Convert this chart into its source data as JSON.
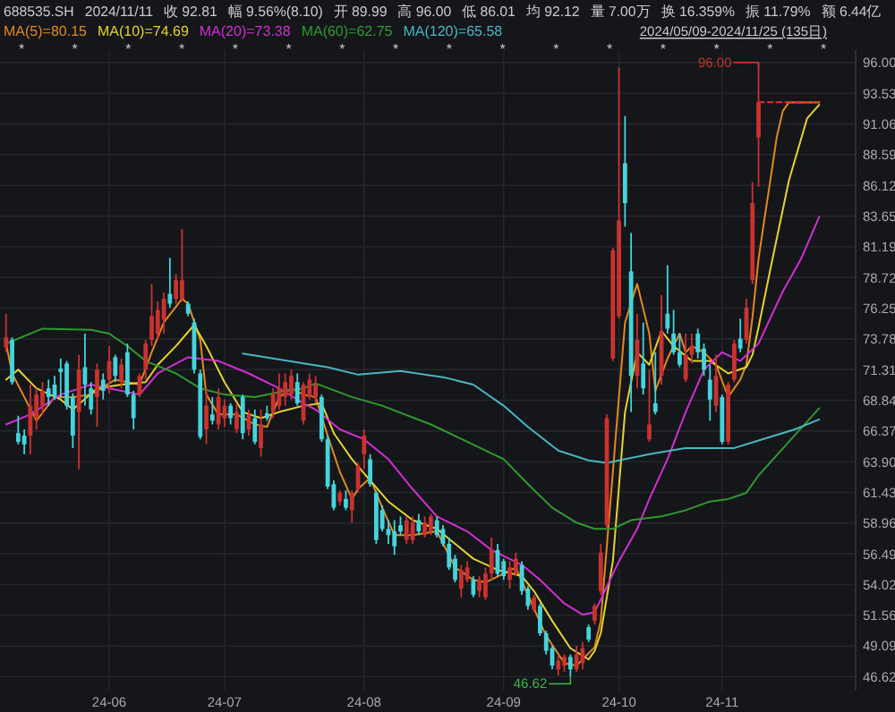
{
  "chart_data": {
    "type": "candlestick",
    "categories": [
      null,
      null,
      null,
      null,
      null,
      null,
      null,
      null,
      null,
      null,
      null,
      null,
      null,
      null,
      null,
      null,
      null,
      "24-06",
      null,
      null,
      null,
      null,
      null,
      null,
      null,
      null,
      null,
      null,
      null,
      null,
      null,
      null,
      null,
      null,
      null,
      null,
      "24-07",
      null,
      null,
      null,
      null,
      null,
      null,
      null,
      null,
      null,
      null,
      null,
      null,
      null,
      null,
      null,
      null,
      null,
      null,
      null,
      null,
      null,
      null,
      "24-08",
      null,
      null,
      null,
      null,
      null,
      null,
      null,
      null,
      null,
      null,
      null,
      null,
      null,
      null,
      null,
      null,
      null,
      null,
      null,
      null,
      null,
      null,
      "24-09",
      null,
      null,
      null,
      null,
      null,
      null,
      null,
      null,
      null,
      null,
      null,
      null,
      null,
      null,
      null,
      null,
      null,
      null,
      "24-10",
      null,
      null,
      null,
      null,
      null,
      null,
      null,
      null,
      null,
      null,
      null,
      null,
      null,
      null,
      null,
      null,
      "24-11",
      null,
      null,
      null,
      null,
      null,
      null,
      null,
      null,
      null,
      null,
      null,
      null,
      null,
      null,
      null,
      null
    ],
    "ohlc": [
      [
        73.1,
        75.8,
        72.7,
        73.9
      ],
      [
        73.7,
        73.9,
        70.1,
        70.3
      ],
      [
        66.2,
        67.6,
        65.3,
        65.5
      ],
      [
        66.0,
        66.5,
        64.5,
        65.3
      ],
      [
        66.0,
        70.1,
        64.5,
        68.4
      ],
      [
        67.4,
        69.8,
        66.5,
        69.3
      ],
      [
        68.4,
        70.3,
        67.7,
        69.6
      ],
      [
        69.8,
        70.5,
        68.4,
        69.1
      ],
      [
        70.1,
        70.8,
        68.9,
        69.1
      ],
      [
        71.4,
        72.2,
        69.1,
        71.1
      ],
      [
        71.8,
        72.0,
        68.1,
        68.4
      ],
      [
        69.1,
        69.4,
        65.0,
        66.0
      ],
      [
        67.9,
        72.5,
        63.3,
        71.3
      ],
      [
        71.5,
        74.2,
        68.4,
        70.1
      ],
      [
        69.8,
        70.3,
        67.7,
        68.1
      ],
      [
        69.1,
        71.8,
        66.7,
        71.3
      ],
      [
        70.5,
        71.0,
        68.9,
        69.6
      ],
      [
        70.5,
        73.2,
        69.4,
        72.0
      ],
      [
        72.3,
        72.5,
        70.3,
        70.8
      ],
      [
        70.3,
        72.2,
        69.8,
        71.7
      ],
      [
        72.7,
        73.4,
        69.1,
        69.3
      ],
      [
        69.3,
        69.6,
        66.5,
        67.4
      ],
      [
        69.3,
        71.0,
        69.1,
        70.8
      ],
      [
        71.3,
        73.7,
        70.5,
        73.4
      ],
      [
        73.7,
        78.2,
        73.2,
        75.6
      ],
      [
        74.2,
        76.8,
        73.7,
        76.1
      ],
      [
        75.3,
        77.5,
        74.2,
        77.0
      ],
      [
        77.4,
        80.3,
        76.3,
        76.6
      ],
      [
        77.0,
        79.0,
        76.6,
        78.5
      ],
      [
        77.0,
        82.6,
        76.8,
        78.5
      ],
      [
        76.6,
        76.8,
        75.6,
        75.8
      ],
      [
        75.1,
        75.4,
        71.0,
        71.3
      ],
      [
        71.0,
        71.3,
        65.7,
        65.9
      ],
      [
        66.5,
        69.8,
        65.3,
        68.4
      ],
      [
        67.7,
        69.1,
        66.9,
        67.2
      ],
      [
        66.9,
        69.8,
        66.5,
        69.1
      ],
      [
        67.4,
        68.9,
        66.7,
        68.4
      ],
      [
        68.4,
        68.6,
        66.9,
        67.4
      ],
      [
        66.5,
        68.6,
        66.2,
        67.9
      ],
      [
        69.1,
        69.3,
        65.7,
        66.2
      ],
      [
        66.5,
        68.1,
        66.0,
        67.7
      ],
      [
        67.4,
        68.1,
        65.3,
        65.5
      ],
      [
        65.0,
        68.1,
        64.3,
        66.9
      ],
      [
        67.8,
        68.4,
        67.2,
        67.4
      ],
      [
        67.9,
        69.8,
        67.4,
        69.3
      ],
      [
        68.4,
        71.0,
        68.1,
        69.8
      ],
      [
        69.1,
        71.0,
        68.4,
        70.3
      ],
      [
        69.3,
        71.3,
        68.9,
        70.8
      ],
      [
        70.3,
        71.0,
        68.4,
        68.6
      ],
      [
        67.2,
        70.3,
        66.9,
        70.1
      ],
      [
        69.1,
        71.0,
        68.9,
        70.5
      ],
      [
        69.1,
        70.8,
        68.6,
        70.1
      ],
      [
        69.1,
        69.3,
        65.5,
        65.7
      ],
      [
        65.7,
        66.0,
        61.7,
        61.9
      ],
      [
        62.1,
        62.4,
        60.0,
        60.2
      ],
      [
        60.7,
        61.6,
        60.4,
        61.4
      ],
      [
        60.9,
        61.6,
        60.0,
        60.2
      ],
      [
        60.0,
        61.6,
        59.0,
        61.4
      ],
      [
        61.7,
        63.8,
        61.4,
        63.6
      ],
      [
        64.5,
        66.5,
        63.3,
        66.0
      ],
      [
        64.1,
        64.5,
        61.9,
        62.1
      ],
      [
        61.4,
        61.6,
        57.3,
        57.6
      ],
      [
        60.0,
        60.4,
        58.3,
        58.5
      ],
      [
        58.5,
        59.2,
        57.3,
        58.0
      ],
      [
        58.3,
        59.2,
        56.4,
        57.1
      ],
      [
        58.8,
        59.5,
        58.0,
        58.3
      ],
      [
        57.6,
        59.5,
        57.3,
        59.2
      ],
      [
        57.6,
        59.5,
        57.3,
        59.0
      ],
      [
        59.2,
        59.7,
        58.0,
        58.3
      ],
      [
        58.0,
        59.5,
        57.8,
        59.0
      ],
      [
        58.3,
        59.7,
        58.0,
        59.5
      ],
      [
        59.2,
        59.5,
        57.8,
        58.0
      ],
      [
        58.5,
        58.8,
        57.1,
        57.3
      ],
      [
        57.3,
        57.8,
        55.2,
        55.4
      ],
      [
        56.1,
        56.4,
        54.2,
        54.4
      ],
      [
        53.7,
        55.6,
        53.0,
        55.2
      ],
      [
        54.4,
        55.9,
        54.2,
        55.4
      ],
      [
        54.4,
        54.7,
        53.0,
        53.2
      ],
      [
        53.5,
        54.7,
        53.0,
        54.4
      ],
      [
        53.0,
        55.4,
        52.8,
        54.9
      ],
      [
        54.9,
        57.8,
        54.4,
        56.8
      ],
      [
        56.8,
        57.3,
        54.7,
        54.9
      ],
      [
        55.9,
        56.1,
        54.4,
        54.7
      ],
      [
        54.4,
        55.9,
        53.7,
        55.4
      ],
      [
        54.9,
        56.6,
        54.7,
        56.1
      ],
      [
        55.6,
        55.9,
        53.2,
        53.5
      ],
      [
        53.7,
        53.9,
        52.0,
        52.3
      ],
      [
        52.0,
        53.2,
        51.8,
        53.0
      ],
      [
        52.3,
        52.5,
        49.9,
        50.1
      ],
      [
        50.1,
        50.3,
        48.4,
        48.7
      ],
      [
        48.9,
        49.1,
        47.2,
        47.5
      ],
      [
        47.2,
        48.4,
        46.7,
        47.9
      ],
      [
        47.5,
        48.4,
        47.0,
        48.2
      ],
      [
        48.2,
        48.4,
        46.62,
        47.2
      ],
      [
        47.2,
        49.1,
        47.0,
        48.4
      ],
      [
        47.7,
        49.4,
        47.2,
        48.9
      ],
      [
        50.6,
        50.8,
        49.4,
        49.6
      ],
      [
        51.1,
        52.5,
        50.8,
        52.3
      ],
      [
        53.5,
        57.3,
        53.2,
        56.6
      ],
      [
        58.8,
        67.7,
        58.5,
        67.4
      ],
      [
        72.2,
        81.1,
        72.0,
        80.9
      ],
      [
        75.6,
        95.6,
        75.4,
        83.3
      ],
      [
        87.9,
        91.7,
        82.8,
        84.7
      ],
      [
        79.2,
        82.3,
        67.9,
        70.8
      ],
      [
        70.8,
        75.8,
        69.8,
        73.7
      ],
      [
        71.8,
        75.1,
        69.3,
        69.8
      ],
      [
        65.7,
        71.3,
        65.5,
        66.9
      ],
      [
        68.6,
        72.7,
        67.7,
        67.9
      ],
      [
        70.8,
        77.3,
        70.1,
        74.4
      ],
      [
        75.8,
        79.7,
        74.2,
        74.6
      ],
      [
        74.2,
        76.1,
        72.5,
        72.7
      ],
      [
        72.7,
        74.2,
        71.5,
        71.7
      ],
      [
        70.5,
        74.2,
        70.3,
        72.5
      ],
      [
        72.5,
        74.2,
        71.8,
        73.2
      ],
      [
        74.2,
        74.6,
        72.2,
        72.7
      ],
      [
        73.0,
        73.4,
        70.8,
        71.3
      ],
      [
        70.5,
        71.7,
        67.2,
        68.9
      ],
      [
        68.4,
        72.5,
        67.9,
        70.8
      ],
      [
        69.1,
        69.3,
        65.3,
        65.5
      ],
      [
        65.5,
        70.3,
        65.3,
        70.1
      ],
      [
        70.5,
        73.7,
        70.3,
        73.4
      ],
      [
        73.8,
        75.4,
        72.7,
        73.0
      ],
      [
        73.7,
        77.0,
        73.4,
        76.3
      ],
      [
        78.5,
        86.4,
        78.2,
        84.7
      ],
      [
        89.99,
        96.0,
        86.01,
        92.81
      ],
      null,
      null,
      null,
      null,
      null,
      null,
      null,
      null,
      null,
      null
    ],
    "colors": [
      "#c8332f",
      "#45d4dc",
      "#45d4dc",
      "#45d4dc",
      "#c8332f",
      "#c8332f",
      "#c8332f",
      "#45d4dc",
      "#45d4dc",
      "#45d4dc",
      "#45d4dc",
      "#45d4dc",
      "#c8332f",
      "#45d4dc",
      "#45d4dc",
      "#c8332f",
      "#45d4dc",
      "#c8332f",
      "#45d4dc",
      "#c8332f",
      "#45d4dc",
      "#45d4dc",
      "#c8332f",
      "#c8332f",
      "#c8332f",
      "#c8332f",
      "#c8332f",
      "#45d4dc",
      "#c8332f",
      "#c8332f",
      "#45d4dc",
      "#45d4dc",
      "#45d4dc",
      "#c8332f",
      "#45d4dc",
      "#c8332f",
      "#c8332f",
      "#45d4dc",
      "#c8332f",
      "#45d4dc",
      "#c8332f",
      "#45d4dc",
      "#c8332f",
      "#45d4dc",
      "#c8332f",
      "#c8332f",
      "#c8332f",
      "#c8332f",
      "#45d4dc",
      "#c8332f",
      "#c8332f",
      "#c8332f",
      "#45d4dc",
      "#45d4dc",
      "#45d4dc",
      "#c8332f",
      "#45d4dc",
      "#c8332f",
      "#c8332f",
      "#c8332f",
      "#45d4dc",
      "#45d4dc",
      "#45d4dc",
      "#45d4dc",
      "#45d4dc",
      "#45d4dc",
      "#c8332f",
      "#c8332f",
      "#45d4dc",
      "#c8332f",
      "#c8332f",
      "#45d4dc",
      "#45d4dc",
      "#45d4dc",
      "#45d4dc",
      "#c8332f",
      "#c8332f",
      "#45d4dc",
      "#c8332f",
      "#c8332f",
      "#c8332f",
      "#45d4dc",
      "#45d4dc",
      "#c8332f",
      "#c8332f",
      "#45d4dc",
      "#45d4dc",
      "#c8332f",
      "#45d4dc",
      "#45d4dc",
      "#45d4dc",
      "#c8332f",
      "#c8332f",
      "#45d4dc",
      "#c8332f",
      "#c8332f",
      "#45d4dc",
      "#c8332f",
      "#c8332f",
      "#c8332f",
      "#c8332f",
      "#c8332f",
      "#45d4dc",
      "#45d4dc",
      "#c8332f",
      "#45d4dc",
      "#c8332f",
      "#45d4dc",
      "#c8332f",
      "#45d4dc",
      "#45d4dc",
      "#45d4dc",
      "#c8332f",
      "#c8332f",
      "#45d4dc",
      "#45d4dc",
      "#45d4dc",
      "#c8332f",
      "#45d4dc",
      "#c8332f",
      "#c8332f",
      "#45d4dc",
      "#c8332f",
      "#c8332f",
      "#c8332f",
      null,
      null,
      null,
      null,
      null,
      null,
      null,
      null,
      null,
      null
    ],
    "series": [
      {
        "type": "line",
        "name": "MA(5)=80.15",
        "color": "#e28a1f",
        "values": [
          73.4,
          71.0,
          null,
          69.1,
          null,
          67.2,
          null,
          null,
          69.1,
          null,
          null,
          69.1,
          null,
          null,
          69.3,
          null,
          null,
          null,
          70.5,
          null,
          null,
          null,
          70.1,
          null,
          72.7,
          null,
          75.1,
          null,
          null,
          77.0,
          76.6,
          null,
          73.7,
          69.3,
          null,
          67.7,
          null,
          null,
          67.7,
          null,
          null,
          66.9,
          null,
          66.7,
          null,
          69.1,
          null,
          69.8,
          null,
          69.3,
          null,
          69.1,
          null,
          66.0,
          null,
          63.1,
          null,
          60.9,
          61.7,
          null,
          62.6,
          null,
          60.2,
          null,
          58.0,
          null,
          null,
          58.0,
          null,
          null,
          null,
          58.3,
          null,
          null,
          55.4,
          null,
          null,
          54.4,
          null,
          54.2,
          null,
          null,
          54.9,
          null,
          55.4,
          null,
          53.2,
          null,
          null,
          49.9,
          null,
          null,
          47.7,
          null,
          47.5,
          null,
          null,
          49.0,
          51.1,
          null,
          63.1,
          null,
          75.1,
          null,
          78.2,
          null,
          74.2,
          69.6,
          null,
          72.2,
          null,
          74.2,
          72.7,
          73.2,
          null,
          72.7,
          null,
          71.7,
          null,
          69.1,
          null,
          70.5,
          71.7,
          75.5,
          80.2,
          83.5,
          86.7,
          90.0,
          92.1,
          92.8,
          null,
          null,
          null,
          null,
          92.8
        ]
      },
      {
        "type": "line",
        "name": "MA(10)=74.69",
        "color": "#e6d332",
        "values": [
          70.5,
          null,
          71.3,
          null,
          null,
          69.8,
          null,
          null,
          null,
          68.9,
          null,
          68.1,
          null,
          null,
          null,
          69.8,
          null,
          null,
          null,
          70.1,
          null,
          null,
          null,
          70.3,
          null,
          71.7,
          null,
          null,
          73.2,
          null,
          null,
          74.9,
          null,
          73.2,
          null,
          null,
          70.3,
          null,
          null,
          67.9,
          null,
          null,
          67.4,
          null,
          null,
          67.9,
          null,
          null,
          null,
          68.4,
          null,
          null,
          68.6,
          null,
          66.2,
          null,
          null,
          64.1,
          null,
          null,
          62.4,
          null,
          null,
          60.7,
          null,
          null,
          null,
          59.2,
          null,
          null,
          null,
          58.5,
          null,
          null,
          57.3,
          null,
          null,
          56.1,
          null,
          null,
          null,
          55.2,
          null,
          null,
          null,
          54.7,
          null,
          53.5,
          null,
          null,
          51.1,
          null,
          null,
          48.9,
          null,
          null,
          48.0,
          48.7,
          50.1,
          null,
          55.9,
          null,
          67.9,
          null,
          72.7,
          null,
          71.7,
          null,
          74.4,
          null,
          73.2,
          null,
          null,
          72.0,
          null,
          null,
          72.0,
          null,
          null,
          71.0,
          null,
          null,
          71.5,
          72.5,
          74.7,
          null,
          79.5,
          null,
          null,
          86.5,
          null,
          null,
          91.5,
          null,
          92.6
        ]
      },
      {
        "type": "line",
        "name": "MA(20)=73.38",
        "color": "#d22fd2",
        "values": [
          66.9,
          null,
          null,
          null,
          67.7,
          null,
          null,
          null,
          null,
          69.3,
          null,
          null,
          null,
          null,
          70.1,
          null,
          null,
          null,
          null,
          69.6,
          null,
          null,
          69.3,
          null,
          null,
          71.0,
          null,
          null,
          null,
          null,
          72.3,
          null,
          null,
          null,
          null,
          72.0,
          null,
          null,
          null,
          null,
          71.0,
          null,
          null,
          null,
          null,
          69.8,
          null,
          null,
          null,
          68.6,
          null,
          68.1,
          null,
          null,
          null,
          66.5,
          null,
          null,
          null,
          65.7,
          null,
          null,
          null,
          64.1,
          null,
          null,
          null,
          61.7,
          null,
          null,
          null,
          59.5,
          null,
          null,
          null,
          null,
          58.3,
          null,
          null,
          null,
          56.8,
          null,
          null,
          null,
          null,
          55.6,
          null,
          null,
          54.4,
          null,
          null,
          null,
          52.5,
          null,
          null,
          51.6,
          null,
          51.8,
          null,
          null,
          null,
          55.9,
          null,
          null,
          58.5,
          null,
          60.9,
          null,
          null,
          64.1,
          null,
          null,
          67.9,
          null,
          null,
          71.3,
          null,
          null,
          72.7,
          null,
          null,
          72.0,
          null,
          null,
          73.4,
          null,
          null,
          null,
          77.6,
          null,
          null,
          80.2,
          null,
          null,
          83.6
        ]
      },
      {
        "type": "line",
        "name": "MA(60)=62.75",
        "color": "#2f9a2f",
        "values": [
          73.4,
          null,
          null,
          null,
          null,
          null,
          74.6,
          null,
          null,
          null,
          null,
          null,
          null,
          null,
          74.5,
          null,
          null,
          74.2,
          null,
          null,
          73.2,
          null,
          null,
          72.0,
          null,
          null,
          null,
          null,
          71.0,
          null,
          null,
          null,
          69.8,
          null,
          null,
          null,
          69.3,
          null,
          null,
          null,
          null,
          69.1,
          null,
          null,
          null,
          null,
          69.6,
          null,
          null,
          69.8,
          null,
          70.2,
          null,
          null,
          null,
          null,
          null,
          69.1,
          null,
          null,
          null,
          null,
          68.4,
          null,
          null,
          null,
          null,
          null,
          null,
          null,
          66.9,
          null,
          null,
          null,
          null,
          null,
          65.5,
          null,
          null,
          null,
          null,
          null,
          64.1,
          null,
          null,
          null,
          62.1,
          null,
          null,
          null,
          60.2,
          null,
          null,
          null,
          59.0,
          null,
          null,
          58.5,
          null,
          null,
          58.5,
          null,
          null,
          59.2,
          null,
          null,
          null,
          null,
          59.5,
          null,
          null,
          null,
          60.0,
          null,
          null,
          null,
          60.7,
          null,
          null,
          60.9,
          null,
          null,
          61.4,
          null,
          62.8,
          null,
          null,
          null,
          null,
          65.5,
          null,
          null,
          null,
          null,
          68.2
        ]
      },
      {
        "type": "line",
        "name": "MA(120)=65.58",
        "color": "#4ab6c0",
        "values": [
          null,
          null,
          null,
          null,
          null,
          null,
          null,
          null,
          null,
          null,
          null,
          null,
          null,
          null,
          null,
          null,
          null,
          null,
          null,
          null,
          null,
          null,
          null,
          null,
          null,
          null,
          null,
          null,
          null,
          null,
          null,
          null,
          null,
          null,
          null,
          null,
          null,
          null,
          null,
          72.6,
          null,
          null,
          null,
          null,
          null,
          null,
          null,
          null,
          null,
          71.8,
          null,
          null,
          null,
          71.5,
          null,
          null,
          null,
          null,
          70.9,
          null,
          null,
          null,
          null,
          null,
          null,
          71.2,
          null,
          null,
          null,
          null,
          null,
          null,
          70.7,
          null,
          null,
          null,
          null,
          70.1,
          null,
          null,
          null,
          null,
          68.4,
          null,
          null,
          null,
          66.7,
          null,
          null,
          null,
          null,
          64.8,
          null,
          null,
          null,
          null,
          64.0,
          null,
          null,
          63.8,
          null,
          null,
          null,
          null,
          null,
          null,
          64.5,
          null,
          null,
          null,
          null,
          null,
          65.0,
          null,
          null,
          null,
          null,
          null,
          null,
          null,
          65.0,
          null,
          null,
          null,
          65.6,
          null,
          null,
          null,
          null,
          null,
          66.5,
          null,
          null,
          null,
          67.3
        ]
      },
      {
        "type": "line",
        "color": "#e0302b",
        "line_style": "dashed",
        "values": [
          null,
          null,
          null,
          null,
          null,
          null,
          null,
          null,
          null,
          null,
          null,
          null,
          null,
          null,
          null,
          null,
          null,
          null,
          null,
          null,
          null,
          null,
          null,
          null,
          null,
          null,
          null,
          null,
          null,
          null,
          null,
          null,
          null,
          null,
          null,
          null,
          null,
          null,
          null,
          null,
          null,
          null,
          null,
          null,
          null,
          null,
          null,
          null,
          null,
          null,
          null,
          null,
          null,
          null,
          null,
          null,
          null,
          null,
          null,
          null,
          null,
          null,
          null,
          null,
          null,
          null,
          null,
          null,
          null,
          null,
          null,
          null,
          null,
          null,
          null,
          null,
          null,
          null,
          null,
          null,
          null,
          null,
          null,
          null,
          null,
          null,
          null,
          null,
          null,
          null,
          null,
          null,
          null,
          null,
          null,
          null,
          null,
          null,
          null,
          null,
          null,
          null,
          null,
          null,
          null,
          null,
          null,
          null,
          null,
          null,
          null,
          null,
          null,
          null,
          null,
          null,
          null,
          null,
          null,
          null,
          null,
          null,
          null,
          null,
          92.81,
          92.81,
          92.81,
          92.81,
          92.81,
          92.81,
          92.81,
          92.81,
          92.81,
          92.81,
          92.81
        ]
      }
    ],
    "ylim": [
      45.5,
      97
    ],
    "yticks": [
      {
        "value": 96,
        "label": "96.00"
      },
      93.53,
      91.06,
      88.59,
      86.12,
      83.65,
      81.19,
      78.72,
      76.25,
      73.78,
      71.31,
      68.84,
      66.37,
      {
        "value": 63.9,
        "label": "63.90"
      },
      61.43,
      58.96,
      56.49,
      54.02,
      51.56,
      49.09,
      46.62
    ],
    "grid": true,
    "legend": "top left",
    "annotations": [
      "688535.SH",
      "2024/11/11",
      "收 92.81",
      "幅 9.56%(8.10)",
      "开 89.99",
      "高 96.00",
      "低 86.01",
      "均 92.12",
      "量 7.00万",
      "换 16.359%",
      "振 11.79%",
      "额 6.44亿",
      "2024/05/09-2024/11/25 (135日)",
      "96.00",
      "46.62",
      "*",
      "*",
      "*",
      "*",
      "*",
      "*",
      "*",
      "*",
      "*",
      "*",
      "*",
      "*",
      "*",
      "*",
      "*",
      "*"
    ]
  }
}
